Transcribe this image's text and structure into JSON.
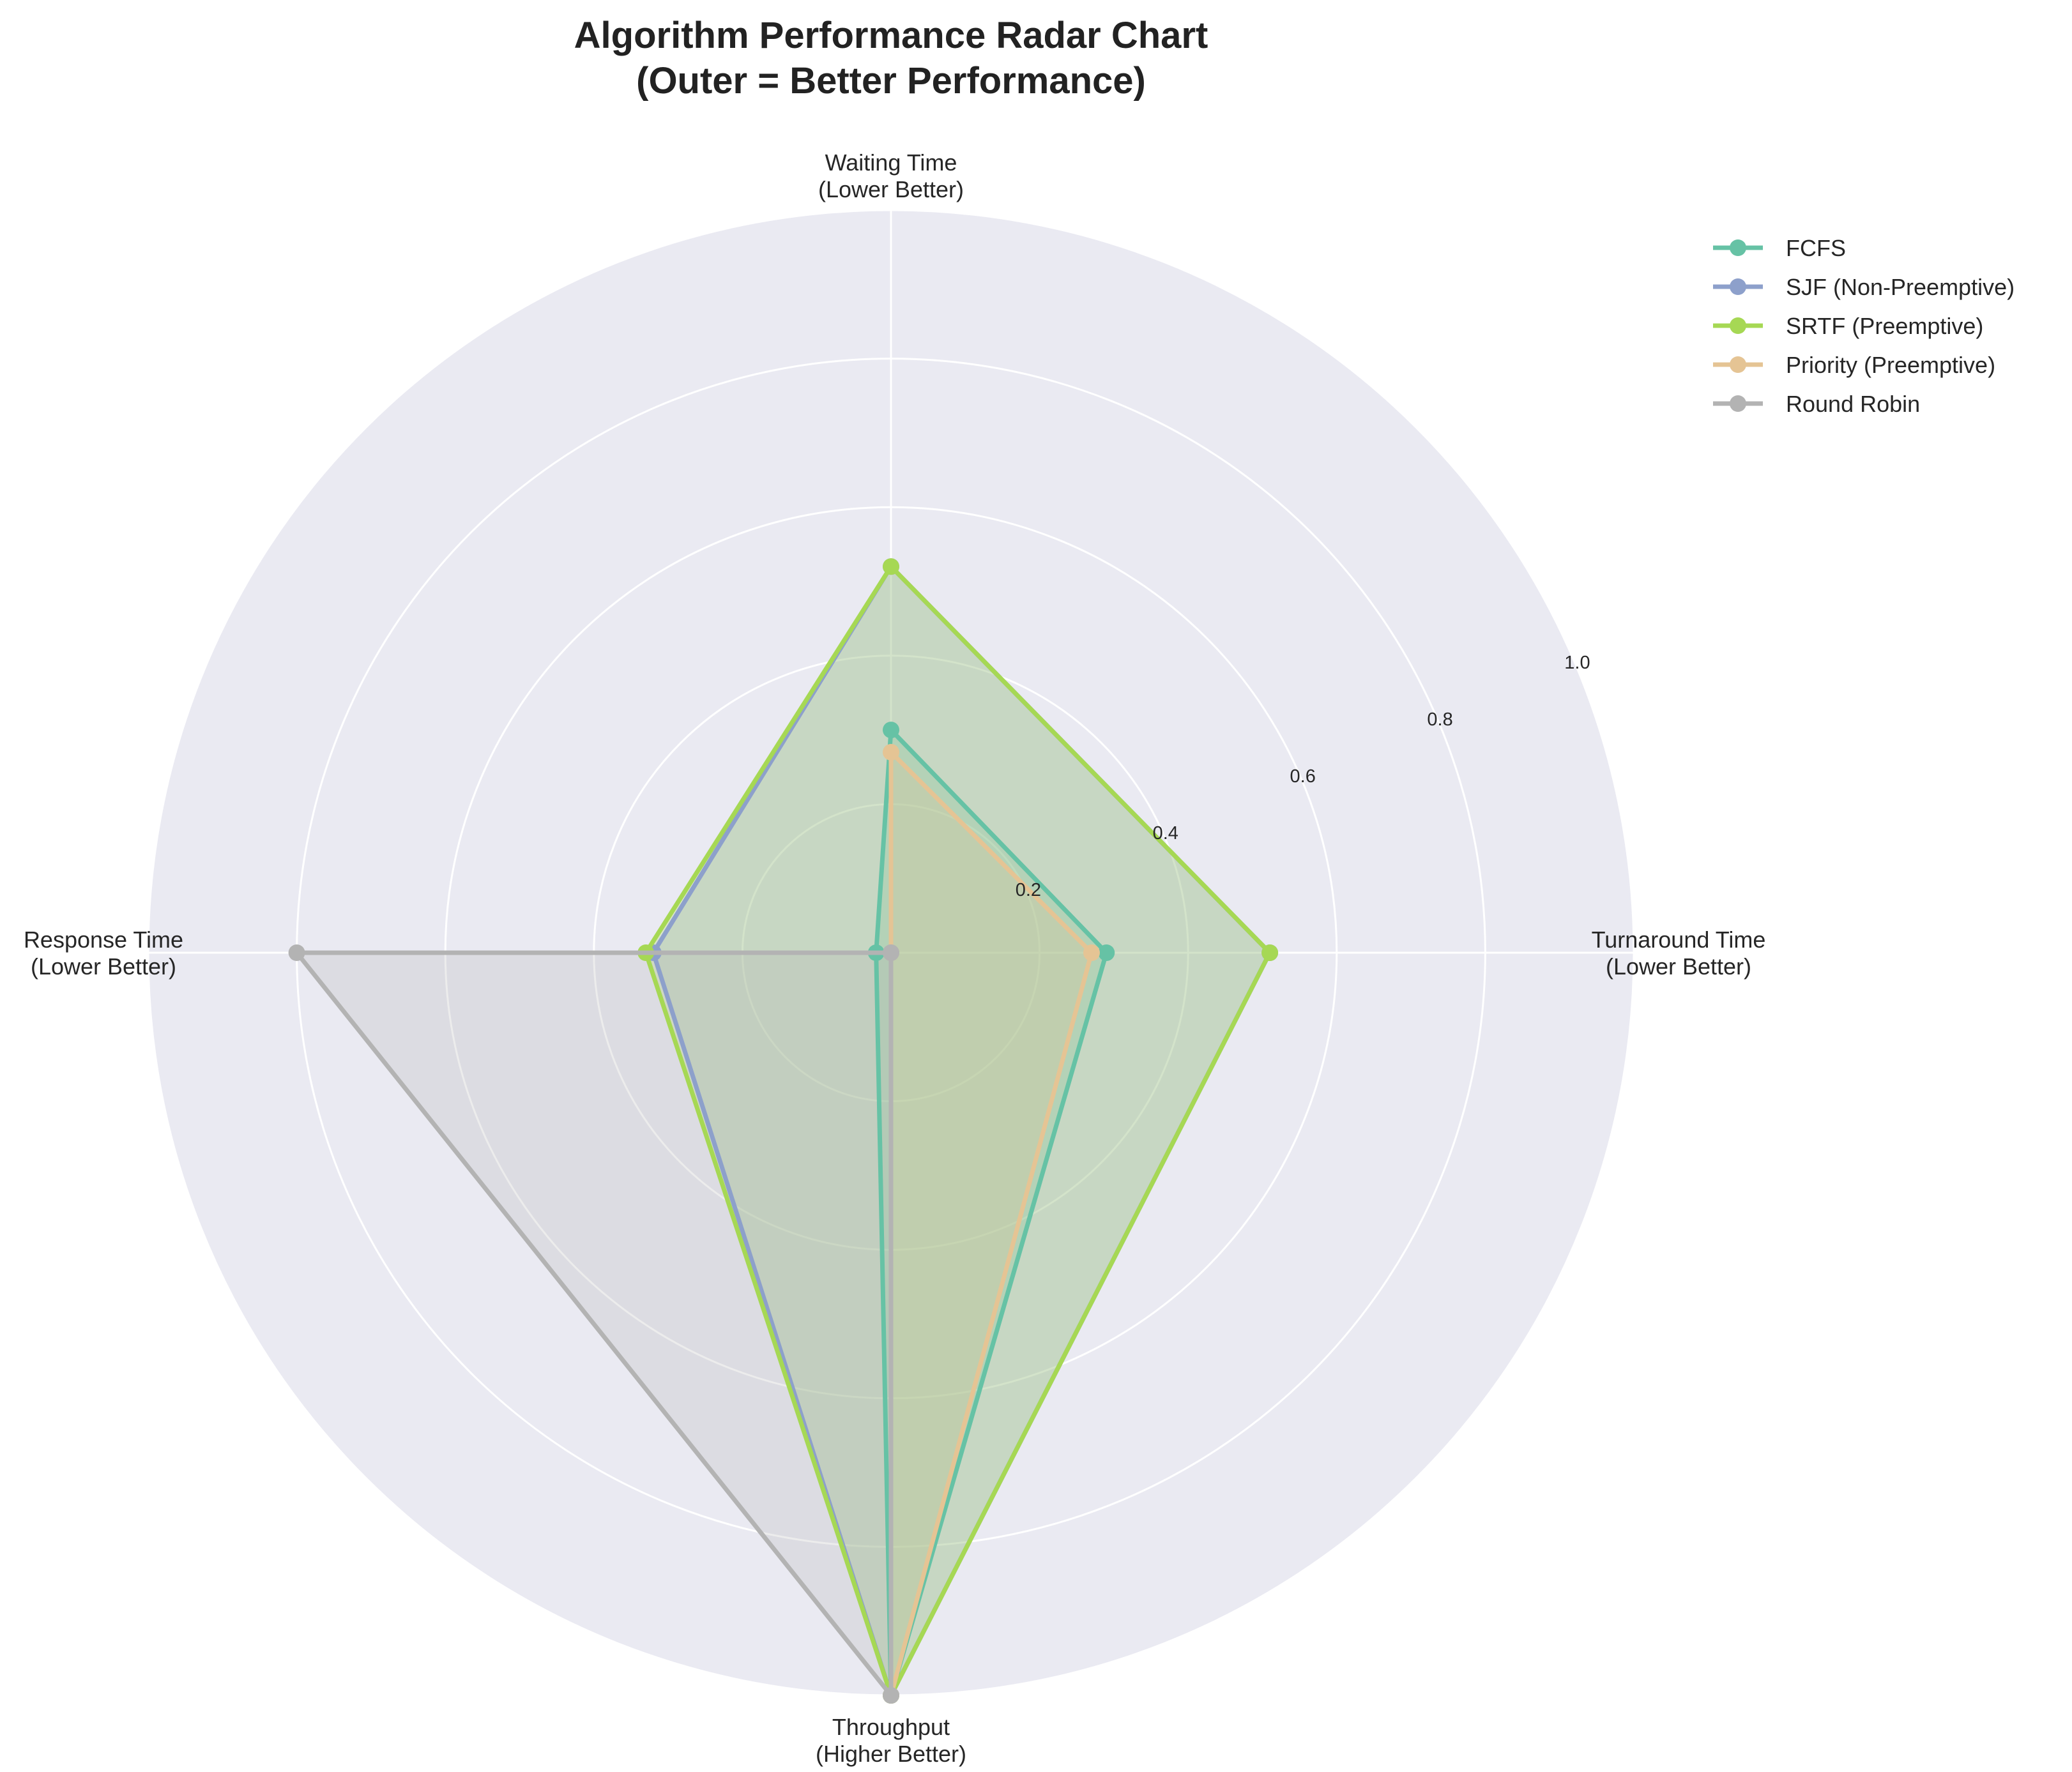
{
  "chart_data": {
    "type": "radar",
    "title_line1": "Algorithm Performance Radar Chart",
    "title_line2": "(Outer = Better Performance)",
    "axes": [
      {
        "line1": "Waiting Time",
        "line2": "(Lower Better)"
      },
      {
        "line1": "Turnaround Time",
        "line2": "(Lower Better)"
      },
      {
        "line1": "Throughput",
        "line2": "(Higher Better)"
      },
      {
        "line1": "Response Time",
        "line2": "(Lower Better)"
      }
    ],
    "rlim": [
      0,
      1
    ],
    "rticks": [
      0.2,
      0.4,
      0.6,
      0.8,
      1.0
    ],
    "rtick_labels": [
      "0.2",
      "0.4",
      "0.6",
      "0.8",
      "1.0"
    ],
    "grid": true,
    "legend_position": "top-right",
    "series": [
      {
        "name": "FCFS",
        "color": "#66c2a5",
        "values": [
          0.3,
          0.29,
          1.0,
          0.02
        ]
      },
      {
        "name": "SJF (Non-Preemptive)",
        "color": "#8da0cb",
        "values": [
          0.52,
          0.51,
          1.0,
          0.32
        ]
      },
      {
        "name": "SRTF (Preemptive)",
        "color": "#a6d854",
        "values": [
          0.52,
          0.51,
          1.0,
          0.33
        ]
      },
      {
        "name": "Priority (Preemptive)",
        "color": "#e5c494",
        "values": [
          0.27,
          0.27,
          1.0,
          0.0
        ]
      },
      {
        "name": "Round Robin",
        "color": "#b3b3b3",
        "values": [
          0.0,
          0.0,
          1.0,
          0.8
        ]
      }
    ]
  }
}
